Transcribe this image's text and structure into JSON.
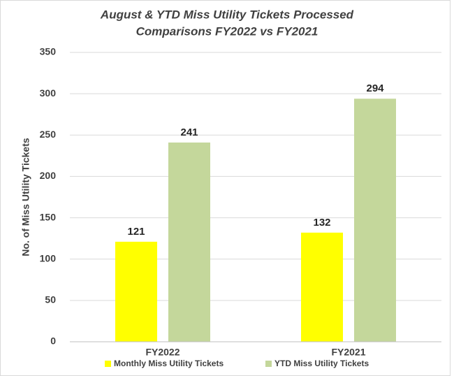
{
  "chart_data": {
    "type": "bar",
    "title": [
      "August & YTD Miss Utility Tickets Processed",
      "Comparisons  FY2022 vs FY2021"
    ],
    "y_label": "No. of Miss Utility Tickets",
    "categories": [
      "FY2022",
      "FY2021"
    ],
    "series": [
      {
        "name": "Monthly Miss Utility Tickets",
        "color": "#ffff00",
        "values": [
          121,
          132
        ]
      },
      {
        "name": "YTD Miss Utility Tickets",
        "color": "#c4d79b",
        "values": [
          241,
          294
        ]
      }
    ],
    "ylim": [
      0,
      350
    ],
    "yticks": [
      0,
      50,
      100,
      150,
      200,
      250,
      300,
      350
    ],
    "grid": true,
    "legend": "bottom"
  }
}
